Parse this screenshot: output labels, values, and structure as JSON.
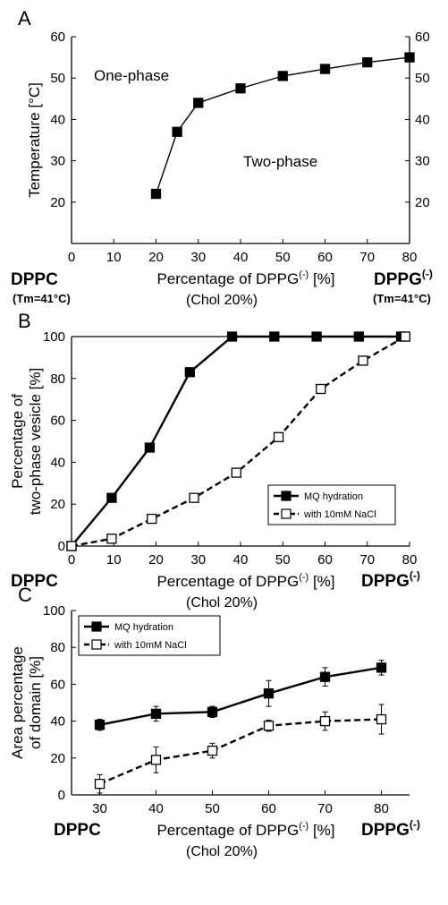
{
  "chart_data": [
    {
      "panel": "A",
      "type": "line",
      "xlabel": "Percentage of DPPG(-) [%]",
      "xlabel_parts": {
        "main": "Percentage of DPPG",
        "sup": "(-)",
        "tail": " [%]"
      },
      "xnote": "(Chol 20%)",
      "ylabel": "Temperature [°C]",
      "xlim": [
        0,
        80
      ],
      "ylim": [
        10,
        60
      ],
      "xticks": [
        0,
        10,
        20,
        30,
        40,
        50,
        60,
        70,
        80
      ],
      "yticks": [
        20,
        30,
        40,
        50,
        60
      ],
      "right_yticks": [
        20,
        30,
        40,
        50,
        60
      ],
      "left_end": {
        "label": "DPPC",
        "sub": "(Tm=41°C)"
      },
      "right_end": {
        "label": "DPPG",
        "sup": "(-)",
        "sub": "(Tm=41°C)"
      },
      "regions": {
        "upper": "One-phase",
        "lower": "Two-phase"
      },
      "grid": false,
      "series": [
        {
          "x": [
            20,
            25,
            30,
            40,
            50,
            60,
            70,
            80
          ],
          "values": [
            22,
            37,
            44,
            47.5,
            50.5,
            52.2,
            53.8,
            55
          ],
          "marker": "filled-square"
        }
      ]
    },
    {
      "panel": "B",
      "type": "line",
      "xlabel": "Percentage of DPPG(-) [%]",
      "xlabel_parts": {
        "main": "Percentage of DPPG",
        "sup": "(-)",
        "tail": " [%]"
      },
      "xnote": "(Chol 20%)",
      "ylabel_lines": [
        "Percentage of",
        "two-phase vesicle [%]"
      ],
      "xlim": [
        0,
        80
      ],
      "ylim": [
        0,
        100
      ],
      "xticks": [
        0,
        10,
        20,
        30,
        40,
        50,
        60,
        70,
        80
      ],
      "yticks": [
        0,
        20,
        40,
        60,
        80,
        100
      ],
      "left_end": {
        "label": "DPPC"
      },
      "right_end": {
        "label": "DPPG",
        "sup": "(-)"
      },
      "legend_position": "bottom-right",
      "grid": false,
      "series": [
        {
          "name": "MQ hydration",
          "x": [
            0,
            9.5,
            18.5,
            28,
            38,
            48,
            58,
            68,
            78
          ],
          "values": [
            0,
            23,
            47,
            83,
            100,
            100,
            100,
            100,
            100
          ],
          "marker": "filled-square",
          "dash": "solid"
        },
        {
          "name": "with 10mM NaCl",
          "x": [
            0,
            9.5,
            19,
            29,
            39,
            49,
            59,
            69,
            79
          ],
          "values": [
            0,
            3.5,
            13,
            23,
            35,
            52,
            75,
            88.5,
            100
          ],
          "marker": "open-square",
          "dash": "dashed"
        }
      ]
    },
    {
      "panel": "C",
      "type": "line",
      "xlabel": "Percentage of DPPG(-) [%]",
      "xlabel_parts": {
        "main": "Percentage of DPPG",
        "sup": "(-)",
        "tail": " [%]"
      },
      "xnote": "(Chol 20%)",
      "ylabel_lines": [
        "Area percentage",
        "of domain [%]"
      ],
      "xlim": [
        25,
        85
      ],
      "ylim": [
        0,
        100
      ],
      "xticks": [
        30,
        40,
        50,
        60,
        70,
        80
      ],
      "yticks": [
        0,
        20,
        40,
        60,
        80,
        100
      ],
      "left_end": {
        "label": "DPPC"
      },
      "right_end": {
        "label": "DPPG",
        "sup": "(-)"
      },
      "legend_position": "top-left",
      "grid": false,
      "series": [
        {
          "name": "MQ hydration",
          "x": [
            30,
            40,
            50,
            60,
            70,
            80
          ],
          "values": [
            38,
            44,
            45,
            55,
            64,
            69
          ],
          "errors": [
            3,
            4,
            3,
            7,
            5,
            4
          ],
          "marker": "filled-square",
          "dash": "solid"
        },
        {
          "name": "with 10mM NaCl",
          "x": [
            30,
            40,
            50,
            60,
            70,
            80
          ],
          "values": [
            6,
            19,
            24,
            37.5,
            40,
            41
          ],
          "errors": [
            5,
            7,
            4,
            3,
            5,
            8
          ],
          "marker": "open-square",
          "dash": "dashed"
        }
      ]
    }
  ]
}
